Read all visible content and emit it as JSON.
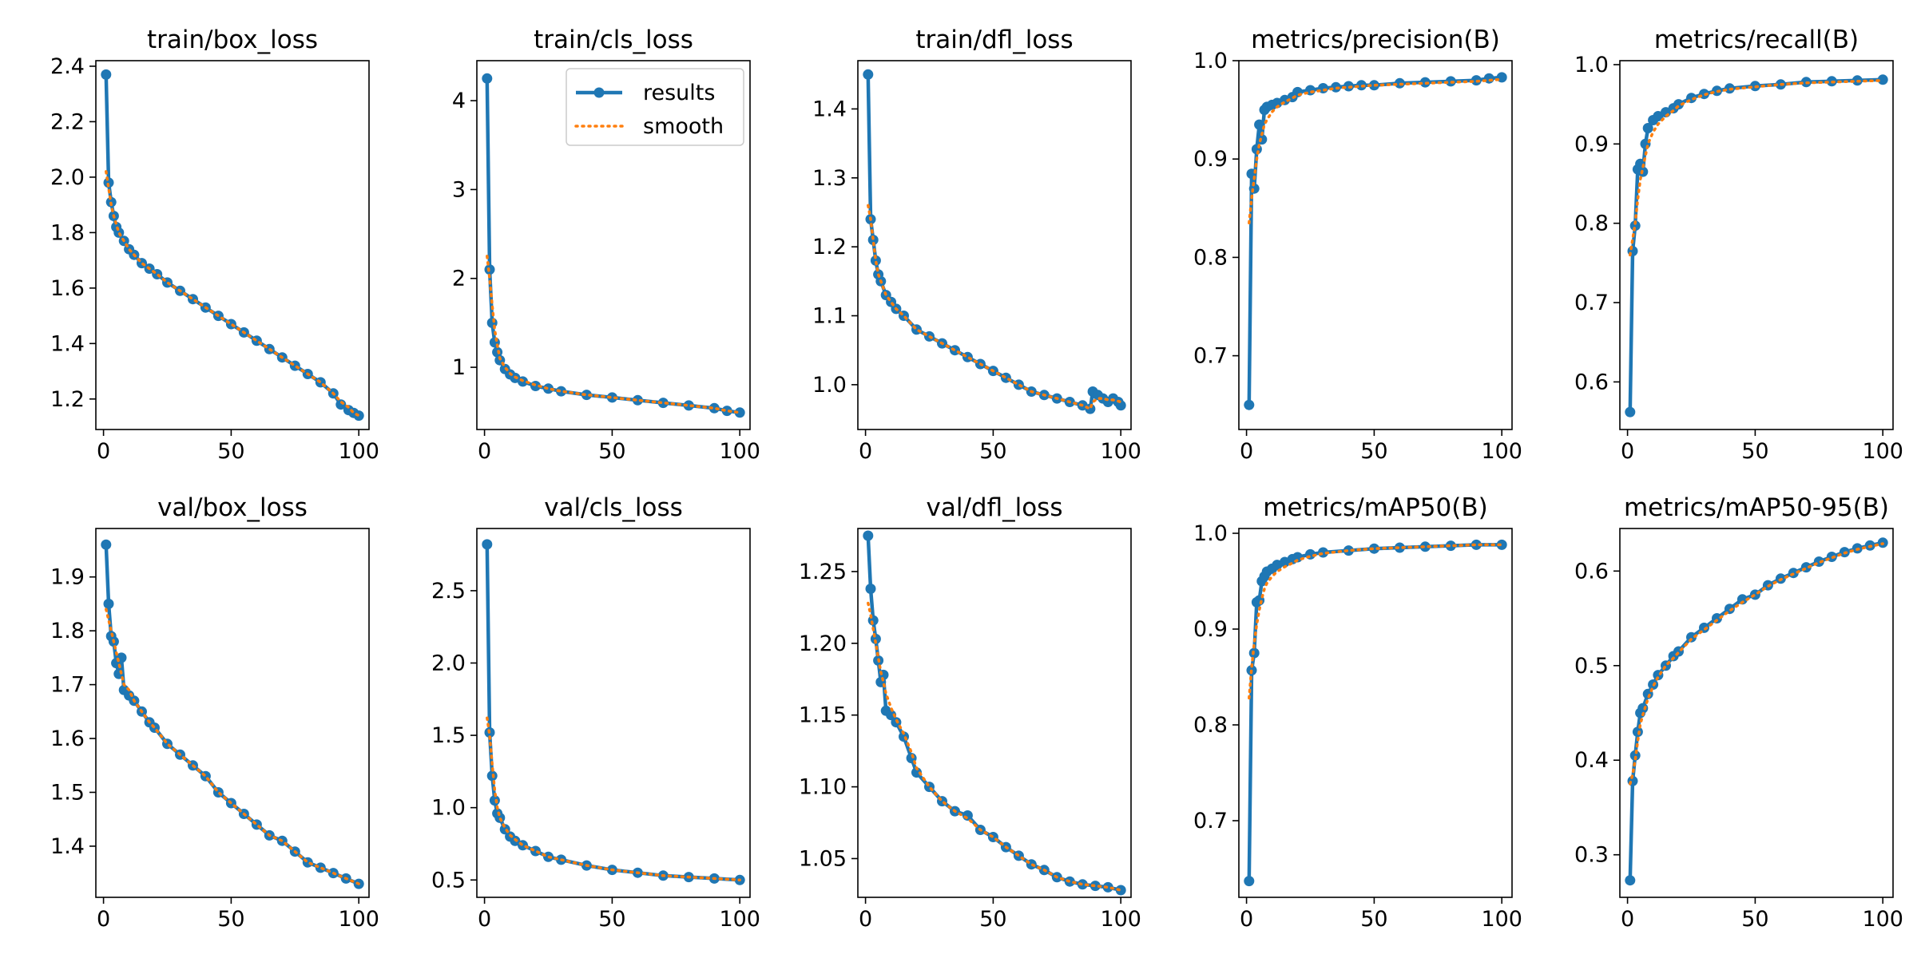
{
  "colors": {
    "results": "#1f77b4",
    "smooth": "#ff7f0e",
    "axes": "#000000",
    "background": "#ffffff"
  },
  "legend": {
    "placement": "top-right",
    "panel": 1,
    "entries": [
      "results",
      "smooth"
    ]
  },
  "chart_data": [
    {
      "type": "line",
      "title": "train/box_loss",
      "xlim": [
        -3,
        104
      ],
      "ylim": [
        1.09,
        2.42
      ],
      "xticks": [
        0,
        50,
        100
      ],
      "yticks": [
        1.2,
        1.4,
        1.6,
        1.8,
        2.0,
        2.2,
        2.4
      ],
      "yticks_label": [
        "1.2",
        "1.4",
        "1.6",
        "1.8",
        "2.0",
        "2.2",
        "2.4"
      ],
      "x": [
        1,
        2,
        3,
        4,
        5,
        6,
        8,
        10,
        12,
        15,
        18,
        21,
        25,
        30,
        35,
        40,
        45,
        50,
        55,
        60,
        65,
        70,
        75,
        80,
        85,
        90,
        93,
        96,
        98,
        100
      ],
      "series": [
        {
          "name": "results",
          "values": [
            2.37,
            1.98,
            1.91,
            1.86,
            1.82,
            1.8,
            1.77,
            1.74,
            1.72,
            1.69,
            1.67,
            1.65,
            1.62,
            1.59,
            1.56,
            1.53,
            1.5,
            1.47,
            1.44,
            1.41,
            1.38,
            1.35,
            1.32,
            1.29,
            1.26,
            1.22,
            1.18,
            1.16,
            1.15,
            1.14
          ]
        },
        {
          "name": "smooth",
          "values": [
            2.02,
            1.96,
            1.9,
            1.86,
            1.83,
            1.8,
            1.77,
            1.74,
            1.72,
            1.69,
            1.67,
            1.65,
            1.62,
            1.59,
            1.56,
            1.53,
            1.5,
            1.47,
            1.44,
            1.41,
            1.38,
            1.35,
            1.32,
            1.29,
            1.26,
            1.22,
            1.19,
            1.17,
            1.15,
            1.14
          ]
        }
      ]
    },
    {
      "type": "line",
      "title": "train/cls_loss",
      "xlim": [
        -3,
        104
      ],
      "ylim": [
        0.3,
        4.45
      ],
      "xticks": [
        0,
        50,
        100
      ],
      "yticks": [
        1,
        2,
        3,
        4
      ],
      "yticks_label": [
        "1",
        "2",
        "3",
        "4"
      ],
      "x": [
        1,
        2,
        3,
        4,
        5,
        6,
        8,
        10,
        12,
        15,
        20,
        25,
        30,
        40,
        50,
        60,
        70,
        80,
        90,
        95,
        100
      ],
      "series": [
        {
          "name": "results",
          "values": [
            4.25,
            2.1,
            1.5,
            1.28,
            1.17,
            1.08,
            0.98,
            0.92,
            0.88,
            0.84,
            0.79,
            0.76,
            0.73,
            0.69,
            0.66,
            0.63,
            0.6,
            0.57,
            0.54,
            0.51,
            0.49
          ]
        },
        {
          "name": "smooth",
          "values": [
            2.25,
            2.0,
            1.7,
            1.42,
            1.25,
            1.1,
            1.0,
            0.93,
            0.89,
            0.85,
            0.8,
            0.76,
            0.73,
            0.69,
            0.66,
            0.63,
            0.6,
            0.57,
            0.54,
            0.51,
            0.49
          ]
        }
      ]
    },
    {
      "type": "line",
      "title": "train/dfl_loss",
      "xlim": [
        -3,
        104
      ],
      "ylim": [
        0.935,
        1.47
      ],
      "xticks": [
        0,
        50,
        100
      ],
      "yticks": [
        1.0,
        1.1,
        1.2,
        1.3,
        1.4
      ],
      "yticks_label": [
        "1.0",
        "1.1",
        "1.2",
        "1.3",
        "1.4"
      ],
      "x": [
        1,
        2,
        3,
        4,
        5,
        6,
        8,
        10,
        12,
        15,
        20,
        25,
        30,
        35,
        40,
        45,
        50,
        55,
        60,
        65,
        70,
        75,
        80,
        85,
        88,
        89,
        91,
        93,
        95,
        97,
        99,
        100
      ],
      "series": [
        {
          "name": "results",
          "values": [
            1.45,
            1.24,
            1.21,
            1.18,
            1.16,
            1.15,
            1.13,
            1.12,
            1.11,
            1.1,
            1.08,
            1.07,
            1.06,
            1.05,
            1.04,
            1.03,
            1.02,
            1.01,
            1.0,
            0.99,
            0.985,
            0.98,
            0.975,
            0.97,
            0.965,
            0.99,
            0.985,
            0.98,
            0.975,
            0.98,
            0.975,
            0.97
          ]
        },
        {
          "name": "smooth",
          "values": [
            1.26,
            1.24,
            1.21,
            1.18,
            1.16,
            1.15,
            1.13,
            1.12,
            1.11,
            1.1,
            1.08,
            1.07,
            1.06,
            1.05,
            1.04,
            1.03,
            1.02,
            1.01,
            1.0,
            0.99,
            0.985,
            0.98,
            0.975,
            0.97,
            0.965,
            0.975,
            0.98,
            0.98,
            0.978,
            0.978,
            0.976,
            0.975
          ]
        }
      ]
    },
    {
      "type": "line",
      "title": "metrics/precision(B)",
      "xlim": [
        -3,
        104
      ],
      "ylim": [
        0.625,
        1.0
      ],
      "xticks": [
        0,
        50,
        100
      ],
      "yticks": [
        0.7,
        0.8,
        0.9,
        1.0
      ],
      "yticks_label": [
        "0.7",
        "0.8",
        "0.9",
        "1.0"
      ],
      "x": [
        1,
        2,
        3,
        4,
        5,
        6,
        7,
        8,
        10,
        12,
        15,
        18,
        20,
        25,
        30,
        35,
        40,
        45,
        50,
        60,
        70,
        80,
        90,
        95,
        100
      ],
      "series": [
        {
          "name": "results",
          "values": [
            0.65,
            0.885,
            0.87,
            0.91,
            0.935,
            0.92,
            0.95,
            0.953,
            0.955,
            0.957,
            0.96,
            0.963,
            0.968,
            0.97,
            0.972,
            0.973,
            0.974,
            0.975,
            0.975,
            0.977,
            0.978,
            0.979,
            0.98,
            0.982,
            0.983
          ]
        },
        {
          "name": "smooth",
          "values": [
            0.835,
            0.86,
            0.88,
            0.9,
            0.915,
            0.925,
            0.935,
            0.94,
            0.948,
            0.953,
            0.958,
            0.962,
            0.965,
            0.968,
            0.97,
            0.972,
            0.973,
            0.974,
            0.975,
            0.976,
            0.977,
            0.978,
            0.979,
            0.98,
            0.981
          ]
        }
      ]
    },
    {
      "type": "line",
      "title": "metrics/recall(B)",
      "xlim": [
        -3,
        104
      ],
      "ylim": [
        0.54,
        1.005
      ],
      "xticks": [
        0,
        50,
        100
      ],
      "yticks": [
        0.6,
        0.7,
        0.8,
        0.9,
        1.0
      ],
      "yticks_label": [
        "0.6",
        "0.7",
        "0.8",
        "0.9",
        "1.0"
      ],
      "x": [
        1,
        2,
        3,
        4,
        5,
        6,
        7,
        8,
        10,
        12,
        15,
        18,
        20,
        25,
        30,
        35,
        40,
        50,
        60,
        70,
        80,
        90,
        100
      ],
      "series": [
        {
          "name": "results",
          "values": [
            0.562,
            0.765,
            0.797,
            0.868,
            0.875,
            0.865,
            0.9,
            0.92,
            0.93,
            0.935,
            0.94,
            0.945,
            0.95,
            0.958,
            0.963,
            0.967,
            0.97,
            0.973,
            0.975,
            0.978,
            0.979,
            0.98,
            0.981
          ]
        },
        {
          "name": "smooth",
          "values": [
            0.76,
            0.78,
            0.8,
            0.83,
            0.855,
            0.87,
            0.885,
            0.9,
            0.915,
            0.925,
            0.935,
            0.942,
            0.948,
            0.956,
            0.962,
            0.966,
            0.969,
            0.972,
            0.975,
            0.977,
            0.978,
            0.979,
            0.98
          ]
        }
      ]
    },
    {
      "type": "line",
      "title": "val/box_loss",
      "xlim": [
        -3,
        104
      ],
      "ylim": [
        1.305,
        1.99
      ],
      "xticks": [
        0,
        50,
        100
      ],
      "yticks": [
        1.4,
        1.5,
        1.6,
        1.7,
        1.8,
        1.9
      ],
      "yticks_label": [
        "1.4",
        "1.5",
        "1.6",
        "1.7",
        "1.8",
        "1.9"
      ],
      "x": [
        1,
        2,
        3,
        4,
        5,
        6,
        7,
        8,
        10,
        12,
        15,
        18,
        20,
        25,
        30,
        35,
        40,
        45,
        50,
        55,
        60,
        65,
        70,
        75,
        80,
        85,
        90,
        95,
        100
      ],
      "series": [
        {
          "name": "results",
          "values": [
            1.96,
            1.85,
            1.79,
            1.78,
            1.74,
            1.72,
            1.75,
            1.69,
            1.68,
            1.67,
            1.65,
            1.63,
            1.62,
            1.59,
            1.57,
            1.55,
            1.53,
            1.5,
            1.48,
            1.46,
            1.44,
            1.42,
            1.41,
            1.39,
            1.37,
            1.36,
            1.35,
            1.34,
            1.33
          ]
        },
        {
          "name": "smooth",
          "values": [
            1.84,
            1.82,
            1.8,
            1.78,
            1.76,
            1.74,
            1.72,
            1.7,
            1.69,
            1.67,
            1.65,
            1.63,
            1.62,
            1.59,
            1.57,
            1.55,
            1.53,
            1.5,
            1.48,
            1.46,
            1.44,
            1.42,
            1.41,
            1.39,
            1.37,
            1.36,
            1.35,
            1.34,
            1.33
          ]
        }
      ]
    },
    {
      "type": "line",
      "title": "val/cls_loss",
      "xlim": [
        -3,
        104
      ],
      "ylim": [
        0.38,
        2.93
      ],
      "xticks": [
        0,
        50,
        100
      ],
      "yticks": [
        0.5,
        1.0,
        1.5,
        2.0,
        2.5
      ],
      "yticks_label": [
        "0.5",
        "1.0",
        "1.5",
        "2.0",
        "2.5"
      ],
      "x": [
        1,
        2,
        3,
        4,
        5,
        6,
        8,
        10,
        12,
        15,
        20,
        25,
        30,
        40,
        50,
        60,
        70,
        80,
        90,
        100
      ],
      "series": [
        {
          "name": "results",
          "values": [
            2.82,
            1.52,
            1.22,
            1.05,
            0.96,
            0.93,
            0.85,
            0.8,
            0.77,
            0.74,
            0.7,
            0.66,
            0.64,
            0.6,
            0.57,
            0.55,
            0.53,
            0.52,
            0.51,
            0.5
          ]
        },
        {
          "name": "smooth",
          "values": [
            1.62,
            1.5,
            1.3,
            1.12,
            1.0,
            0.93,
            0.86,
            0.81,
            0.78,
            0.74,
            0.7,
            0.66,
            0.64,
            0.6,
            0.57,
            0.55,
            0.53,
            0.52,
            0.51,
            0.5
          ]
        }
      ]
    },
    {
      "type": "line",
      "title": "val/dfl_loss",
      "xlim": [
        -3,
        104
      ],
      "ylim": [
        1.023,
        1.28
      ],
      "xticks": [
        0,
        50,
        100
      ],
      "yticks": [
        1.05,
        1.1,
        1.15,
        1.2,
        1.25
      ],
      "yticks_label": [
        "1.05",
        "1.10",
        "1.15",
        "1.20",
        "1.25"
      ],
      "x": [
        1,
        2,
        3,
        4,
        5,
        6,
        7,
        8,
        10,
        12,
        15,
        18,
        20,
        25,
        30,
        35,
        40,
        45,
        50,
        55,
        60,
        65,
        70,
        75,
        80,
        85,
        90,
        95,
        100
      ],
      "series": [
        {
          "name": "results",
          "values": [
            1.275,
            1.238,
            1.216,
            1.203,
            1.188,
            1.173,
            1.178,
            1.153,
            1.15,
            1.145,
            1.135,
            1.12,
            1.11,
            1.1,
            1.09,
            1.083,
            1.08,
            1.07,
            1.065,
            1.058,
            1.052,
            1.046,
            1.042,
            1.037,
            1.034,
            1.032,
            1.031,
            1.03,
            1.028
          ]
        },
        {
          "name": "smooth",
          "values": [
            1.228,
            1.22,
            1.21,
            1.2,
            1.19,
            1.18,
            1.173,
            1.165,
            1.155,
            1.147,
            1.137,
            1.124,
            1.113,
            1.1,
            1.09,
            1.083,
            1.078,
            1.07,
            1.065,
            1.058,
            1.052,
            1.046,
            1.042,
            1.037,
            1.034,
            1.032,
            1.031,
            1.03,
            1.028
          ]
        }
      ]
    },
    {
      "type": "line",
      "title": "metrics/mAP50(B)",
      "xlim": [
        -3,
        104
      ],
      "ylim": [
        0.62,
        1.005
      ],
      "xticks": [
        0,
        50,
        100
      ],
      "yticks": [
        0.7,
        0.8,
        0.9,
        1.0
      ],
      "yticks_label": [
        "0.7",
        "0.8",
        "0.9",
        "1.0"
      ],
      "x": [
        1,
        2,
        3,
        4,
        5,
        6,
        7,
        8,
        10,
        12,
        15,
        18,
        20,
        25,
        30,
        40,
        50,
        60,
        70,
        80,
        90,
        100
      ],
      "series": [
        {
          "name": "results",
          "values": [
            0.637,
            0.857,
            0.875,
            0.928,
            0.93,
            0.95,
            0.955,
            0.96,
            0.963,
            0.967,
            0.97,
            0.973,
            0.975,
            0.978,
            0.98,
            0.982,
            0.984,
            0.985,
            0.986,
            0.987,
            0.988,
            0.988
          ]
        },
        {
          "name": "smooth",
          "values": [
            0.828,
            0.86,
            0.885,
            0.905,
            0.92,
            0.932,
            0.942,
            0.948,
            0.955,
            0.96,
            0.965,
            0.969,
            0.972,
            0.976,
            0.979,
            0.982,
            0.984,
            0.985,
            0.986,
            0.987,
            0.988,
            0.988
          ]
        }
      ]
    },
    {
      "type": "line",
      "title": "metrics/mAP50-95(B)",
      "xlim": [
        -3,
        104
      ],
      "ylim": [
        0.255,
        0.645
      ],
      "xticks": [
        0,
        50,
        100
      ],
      "yticks": [
        0.3,
        0.4,
        0.5,
        0.6
      ],
      "yticks_label": [
        "0.3",
        "0.4",
        "0.5",
        "0.6"
      ],
      "x": [
        1,
        2,
        3,
        4,
        5,
        6,
        8,
        10,
        12,
        15,
        18,
        20,
        25,
        30,
        35,
        40,
        45,
        50,
        55,
        60,
        65,
        70,
        75,
        80,
        85,
        90,
        95,
        100
      ],
      "series": [
        {
          "name": "results",
          "values": [
            0.273,
            0.378,
            0.405,
            0.43,
            0.45,
            0.455,
            0.47,
            0.48,
            0.49,
            0.5,
            0.51,
            0.515,
            0.53,
            0.54,
            0.55,
            0.56,
            0.57,
            0.575,
            0.585,
            0.592,
            0.598,
            0.604,
            0.61,
            0.615,
            0.62,
            0.624,
            0.627,
            0.63
          ]
        },
        {
          "name": "smooth",
          "values": [
            0.375,
            0.385,
            0.4,
            0.42,
            0.438,
            0.448,
            0.465,
            0.478,
            0.488,
            0.5,
            0.508,
            0.514,
            0.528,
            0.538,
            0.548,
            0.558,
            0.567,
            0.575,
            0.584,
            0.591,
            0.597,
            0.603,
            0.609,
            0.614,
            0.619,
            0.623,
            0.626,
            0.629
          ]
        }
      ]
    }
  ]
}
